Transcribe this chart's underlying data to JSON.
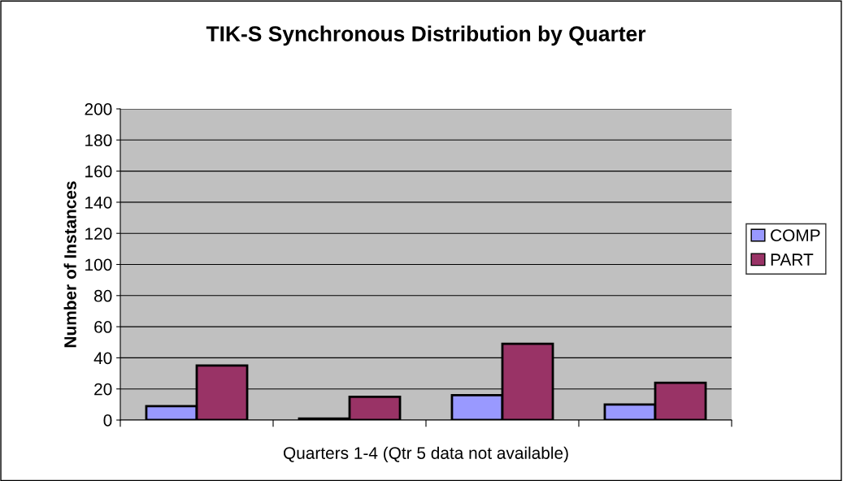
{
  "chart_data": {
    "type": "bar",
    "title": "TIK-S Synchronous Distribution by Quarter",
    "xlabel": "Quarters 1-4 (Qtr 5 data not available)",
    "ylabel": "Number of Instances",
    "categories": [
      null,
      null,
      null,
      null
    ],
    "series": [
      {
        "name": "COMP",
        "color": "#9999ff",
        "values": [
          9,
          1,
          16,
          10
        ]
      },
      {
        "name": "PART",
        "color": "#993366",
        "values": [
          35,
          15,
          49,
          24
        ]
      }
    ],
    "ylim": [
      0,
      200
    ],
    "yticks": [
      0,
      20,
      40,
      60,
      80,
      100,
      120,
      140,
      160,
      180,
      200
    ],
    "grid": "y",
    "legend": "right"
  }
}
